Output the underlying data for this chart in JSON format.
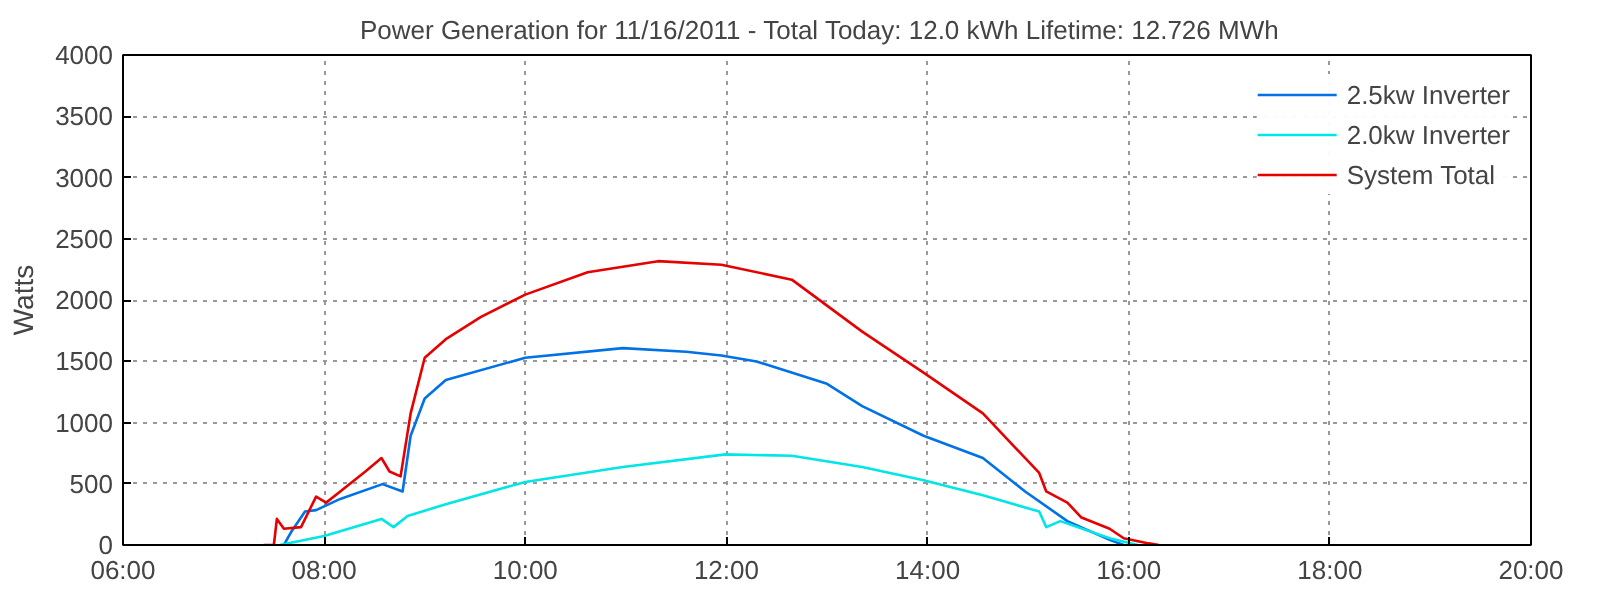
{
  "chart_data": {
    "type": "line",
    "title": "Power Generation for 11/16/2011 - Total Today: 12.0 kWh   Lifetime: 12.726 MWh",
    "ylabel": "Watts",
    "xlim": [
      6,
      20
    ],
    "xticks": [
      {
        "value": 6,
        "label": "06:00"
      },
      {
        "value": 8,
        "label": "08:00"
      },
      {
        "value": 10,
        "label": "10:00"
      },
      {
        "value": 12,
        "label": "12:00"
      },
      {
        "value": 14,
        "label": "14:00"
      },
      {
        "value": 16,
        "label": "16:00"
      },
      {
        "value": 18,
        "label": "18:00"
      },
      {
        "value": 20,
        "label": "20:00"
      }
    ],
    "ylim": [
      0,
      4000
    ],
    "yticks": [
      0,
      500,
      1000,
      1500,
      2000,
      2500,
      3000,
      3500,
      4000
    ],
    "grid": true,
    "legend": "top right",
    "marker": "none",
    "line_style": "solid",
    "series": [
      {
        "name": "2.5kw Inverter",
        "color": "#0072e6",
        "x": [
          7.6,
          7.67,
          7.81,
          7.92,
          8.16,
          8.58,
          8.78,
          8.86,
          9.0,
          9.21,
          10.0,
          10.97,
          11.6,
          11.95,
          12.3,
          13.0,
          13.35,
          13.96,
          14.55,
          14.97,
          15.39,
          15.81,
          15.95
        ],
        "values": [
          0,
          104,
          273,
          285,
          376,
          497,
          437,
          892,
          1196,
          1347,
          1529,
          1607,
          1578,
          1547,
          1498,
          1316,
          1134,
          892,
          710,
          437,
          195,
          42,
          0
        ]
      },
      {
        "name": "2.0kw Inverter",
        "color": "#00e6e6",
        "x": [
          7.56,
          8.0,
          8.57,
          8.69,
          8.83,
          9.21,
          10.0,
          10.97,
          11.99,
          12.65,
          13.35,
          13.96,
          14.55,
          15.11,
          15.18,
          15.32,
          15.81,
          16.09
        ],
        "values": [
          0,
          73,
          213,
          146,
          237,
          333,
          515,
          637,
          740,
          728,
          637,
          528,
          406,
          273,
          146,
          195,
          55,
          0
        ]
      },
      {
        "name": "System Total",
        "color": "#e60000",
        "x": [
          7.4,
          7.5,
          7.53,
          7.6,
          7.77,
          7.92,
          8.02,
          8.16,
          8.41,
          8.57,
          8.65,
          8.76,
          8.86,
          9.0,
          9.21,
          9.56,
          10.0,
          10.62,
          11.32,
          11.95,
          12.65,
          13.35,
          13.96,
          14.55,
          15.11,
          15.18,
          15.39,
          15.53,
          15.81,
          15.95,
          16.2,
          16.3
        ],
        "values": [
          0,
          0,
          213,
          133,
          146,
          395,
          346,
          437,
          600,
          710,
          600,
          560,
          1074,
          1529,
          1680,
          1862,
          2044,
          2226,
          2317,
          2288,
          2166,
          1742,
          1407,
          1074,
          588,
          437,
          346,
          224,
          133,
          55,
          13,
          0
        ]
      }
    ]
  }
}
